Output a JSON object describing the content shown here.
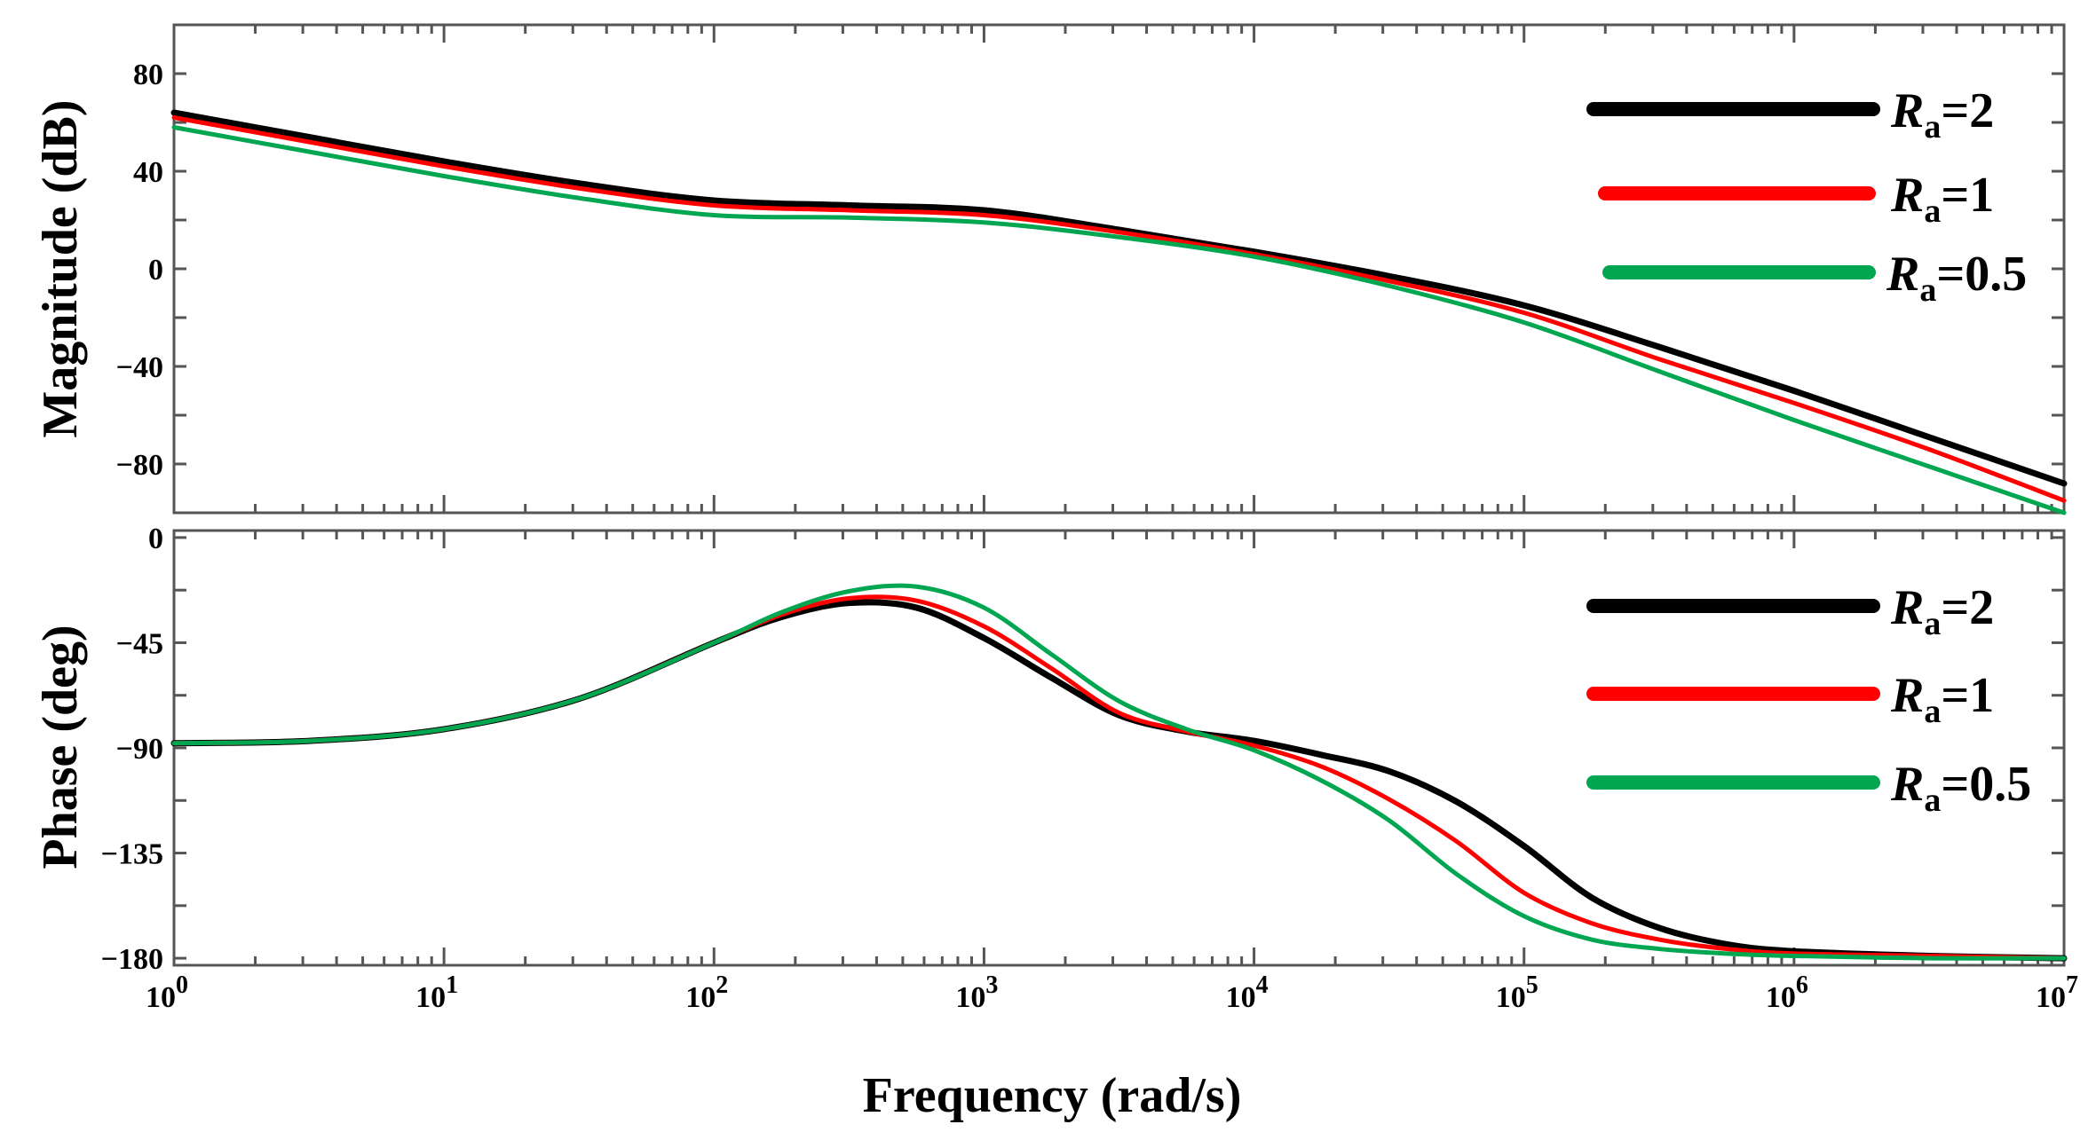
{
  "chart_data": {
    "type": "line",
    "title": "",
    "xlabel": "Frequency  (rad/s)",
    "x_scale": "log",
    "xlim": [
      1,
      10000000
    ],
    "x_ticks": [
      {
        "base": "10",
        "exp": "0"
      },
      {
        "base": "10",
        "exp": "1"
      },
      {
        "base": "10",
        "exp": "2"
      },
      {
        "base": "10",
        "exp": "3"
      },
      {
        "base": "10",
        "exp": "4"
      },
      {
        "base": "10",
        "exp": "5"
      },
      {
        "base": "10",
        "exp": "6"
      },
      {
        "base": "10",
        "exp": "7"
      }
    ],
    "legend_position": "top-right",
    "series_styles": [
      {
        "name": "Ra=2",
        "symbol": "R",
        "subscript": "a",
        "value_text": "=2",
        "color": "#000000"
      },
      {
        "name": "Ra=1",
        "symbol": "R",
        "subscript": "a",
        "value_text": "=1",
        "color": "#ff0000"
      },
      {
        "name": "Ra=0.5",
        "symbol": "R",
        "subscript": "a",
        "value_text": "=0.5",
        "color": "#00a650"
      }
    ],
    "panels": [
      {
        "id": "magnitude",
        "ylabel": "Magnitude (dB)",
        "ylim": [
          -100,
          100
        ],
        "y_ticks": [
          80,
          40,
          0,
          -40,
          -80
        ],
        "y_tick_labels": [
          "80",
          "40",
          "0",
          "−40",
          "−80"
        ],
        "log10_x": [
          0,
          0.5,
          1,
          1.5,
          2,
          2.5,
          3,
          3.5,
          4,
          4.5,
          5,
          5.5,
          6,
          6.5,
          7
        ],
        "series": [
          {
            "name": "Ra=2",
            "values": [
              64,
              54,
              44,
              35,
              28,
              26,
              24,
              16,
              7,
              -3,
              -15,
              -32,
              -50,
              -69,
              -88
            ]
          },
          {
            "name": "Ra=1",
            "values": [
              62,
              52,
              42,
              33,
              26,
              24,
              22,
              15,
              6,
              -5,
              -18,
              -37,
              -55,
              -74,
              -95
            ]
          },
          {
            "name": "Ra=0.5",
            "values": [
              58,
              48,
              38,
              29,
              22,
              21,
              19,
              13,
              5,
              -7,
              -22,
              -42,
              -62,
              -81,
              -100
            ]
          }
        ]
      },
      {
        "id": "phase",
        "ylabel": "Phase (deg)",
        "ylim": [
          -183,
          3
        ],
        "y_ticks": [
          0,
          -45,
          -90,
          -135,
          -180
        ],
        "y_tick_labels": [
          "0",
          "−45",
          "−90",
          "−135",
          "−180"
        ],
        "log10_x": [
          0,
          0.5,
          1,
          1.5,
          2,
          2.25,
          2.5,
          2.75,
          3,
          3.25,
          3.5,
          3.75,
          4,
          4.25,
          4.5,
          4.75,
          5,
          5.25,
          5.5,
          5.75,
          6,
          6.5,
          7
        ],
        "series": [
          {
            "name": "Ra=2",
            "values": [
              -88,
              -87,
              -82,
              -69,
              -45,
              -34,
              -28,
              -30,
              -43,
              -60,
              -76,
              -83,
              -87,
              -93,
              -100,
              -113,
              -132,
              -154,
              -167,
              -174,
              -177,
              -179,
              -180
            ]
          },
          {
            "name": "Ra=1",
            "values": [
              -88,
              -87,
              -82,
              -69,
              -45,
              -33,
              -26,
              -27,
              -38,
              -56,
              -75,
              -83,
              -89,
              -98,
              -112,
              -130,
              -152,
              -165,
              -172,
              -176,
              -178,
              -179,
              -180
            ]
          },
          {
            "name": "Ra=0.5",
            "values": [
              -88,
              -87,
              -82,
              -69,
              -45,
              -32,
              -23,
              -21,
              -30,
              -50,
              -70,
              -82,
              -91,
              -104,
              -121,
              -144,
              -162,
              -172,
              -176,
              -178,
              -179,
              -180,
              -180
            ]
          }
        ]
      }
    ]
  }
}
